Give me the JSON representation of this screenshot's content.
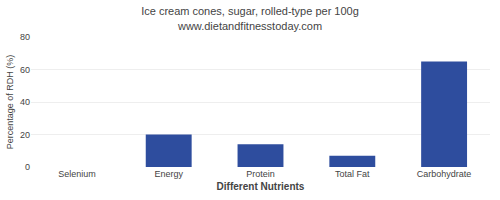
{
  "chart_data": {
    "type": "bar",
    "title": "Ice cream cones, sugar, rolled-type per 100g",
    "subtitle": "www.dietandfitnesstoday.com",
    "xlabel": "Different Nutrients",
    "ylabel": "Percentage of RDH (%)",
    "categories": [
      "Selenium",
      "Energy",
      "Protein",
      "Total Fat",
      "Carbohydrate"
    ],
    "values": [
      0,
      20,
      14,
      7,
      65
    ],
    "color": "#2e4d9e",
    "ylim": [
      0,
      80
    ],
    "yticks": [
      0,
      20,
      40,
      60,
      80
    ],
    "grid": true
  }
}
